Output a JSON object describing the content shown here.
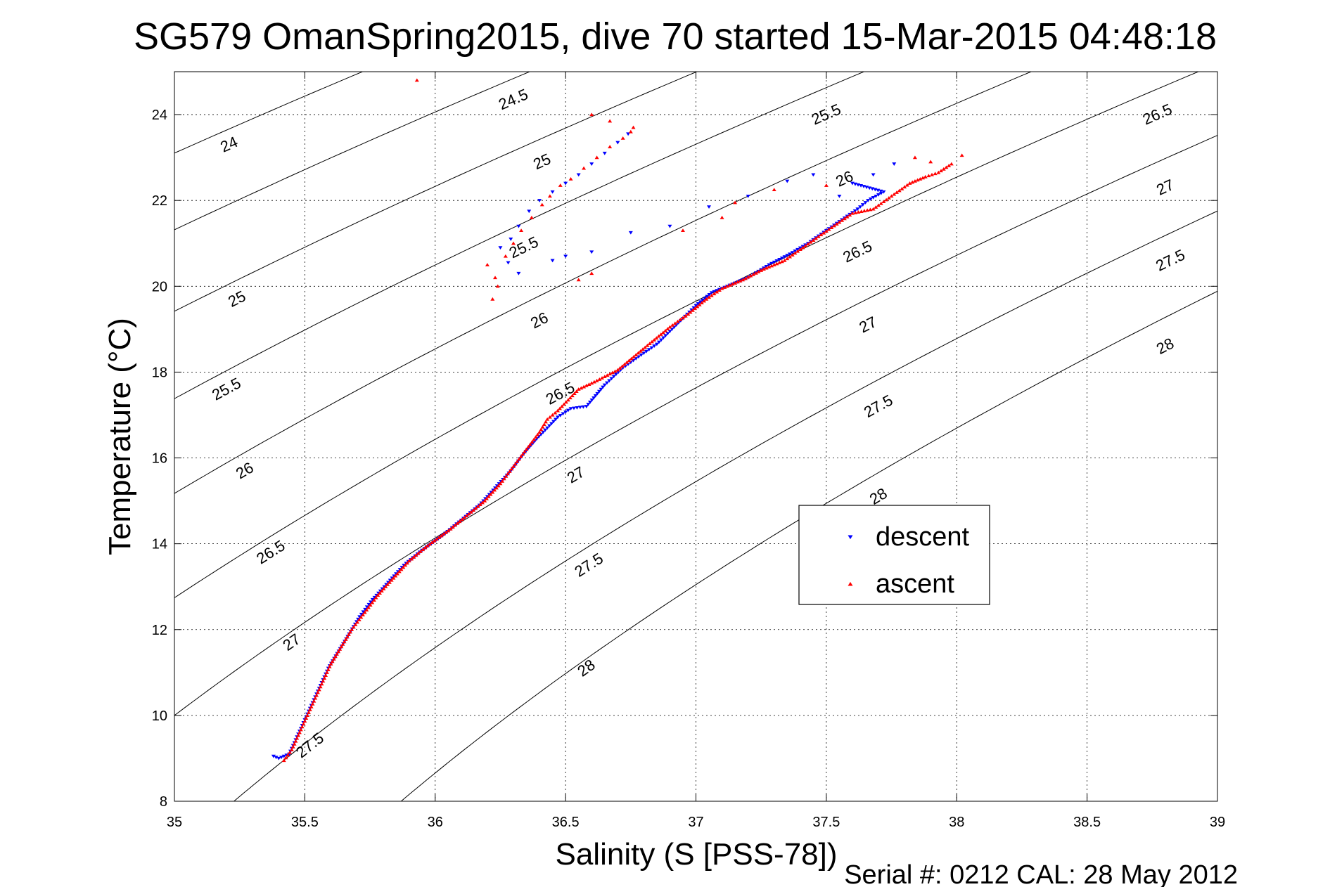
{
  "chart_data": {
    "type": "scatter",
    "title": "SG579 OmanSpring2015, dive 70 started 15-Mar-2015 04:48:18",
    "xlabel": "Salinity (S [PSS-78])",
    "ylabel": "Temperature (°C)",
    "xlim": [
      35,
      39
    ],
    "ylim": [
      8,
      25
    ],
    "xticks": [
      35,
      35.5,
      36,
      36.5,
      37,
      37.5,
      38,
      38.5,
      39
    ],
    "xtick_labels": [
      "35",
      "35.5",
      "36",
      "36.5",
      "37",
      "37.5",
      "38",
      "38.5",
      "39"
    ],
    "yticks": [
      8,
      10,
      12,
      14,
      16,
      18,
      20,
      22,
      24
    ],
    "ytick_labels": [
      "8",
      "10",
      "12",
      "14",
      "16",
      "18",
      "20",
      "22",
      "24"
    ],
    "grid": true,
    "legend_position": "right-center",
    "density_contours": {
      "levels": [
        24,
        24.5,
        25,
        25.5,
        26,
        26.5,
        27,
        27.5,
        28
      ],
      "labels": [
        {
          "text": "24",
          "s": 35.21,
          "t": 23.3
        },
        {
          "text": "24.5",
          "s": 36.3,
          "t": 24.35
        },
        {
          "text": "25",
          "s": 36.41,
          "t": 22.9
        },
        {
          "text": "25",
          "s": 35.24,
          "t": 19.7
        },
        {
          "text": "25.5",
          "s": 37.5,
          "t": 24.0
        },
        {
          "text": "25.5",
          "s": 36.34,
          "t": 20.9
        },
        {
          "text": "25.5",
          "s": 35.2,
          "t": 17.6
        },
        {
          "text": "26",
          "s": 37.57,
          "t": 22.5
        },
        {
          "text": "26",
          "s": 36.4,
          "t": 19.2
        },
        {
          "text": "26",
          "s": 35.27,
          "t": 15.7
        },
        {
          "text": "26.5",
          "s": 38.77,
          "t": 24.0
        },
        {
          "text": "26.5",
          "s": 37.62,
          "t": 20.8
        },
        {
          "text": "26.5",
          "s": 36.48,
          "t": 17.5
        },
        {
          "text": "26.5",
          "s": 35.37,
          "t": 13.8
        },
        {
          "text": "27",
          "s": 38.8,
          "t": 22.3
        },
        {
          "text": "27",
          "s": 37.66,
          "t": 19.1
        },
        {
          "text": "27",
          "s": 36.54,
          "t": 15.6
        },
        {
          "text": "27",
          "s": 35.45,
          "t": 11.7
        },
        {
          "text": "27.5",
          "s": 38.82,
          "t": 20.6
        },
        {
          "text": "27.5",
          "s": 37.7,
          "t": 17.2
        },
        {
          "text": "27.5",
          "s": 36.59,
          "t": 13.5
        },
        {
          "text": "27.5",
          "s": 35.52,
          "t": 9.3
        },
        {
          "text": "28",
          "s": 38.8,
          "t": 18.6
        },
        {
          "text": "28",
          "s": 37.7,
          "t": 15.1
        },
        {
          "text": "28",
          "s": 36.58,
          "t": 11.1
        }
      ]
    },
    "series": [
      {
        "name": "descent",
        "color": "#0000ff",
        "marker": "triangle-down",
        "points": [
          [
            35.38,
            9.05
          ],
          [
            35.4,
            9.0
          ],
          [
            35.44,
            9.1
          ],
          [
            35.47,
            9.5
          ],
          [
            35.5,
            9.9
          ],
          [
            35.53,
            10.3
          ],
          [
            35.56,
            10.7
          ],
          [
            35.59,
            11.1
          ],
          [
            35.63,
            11.5
          ],
          [
            35.67,
            11.9
          ],
          [
            35.71,
            12.3
          ],
          [
            35.76,
            12.7
          ],
          [
            35.82,
            13.1
          ],
          [
            35.88,
            13.5
          ],
          [
            35.95,
            13.85
          ],
          [
            36.03,
            14.2
          ],
          [
            36.1,
            14.55
          ],
          [
            36.17,
            14.9
          ],
          [
            36.23,
            15.3
          ],
          [
            36.29,
            15.7
          ],
          [
            36.34,
            16.1
          ],
          [
            36.39,
            16.45
          ],
          [
            36.43,
            16.7
          ],
          [
            36.47,
            16.95
          ],
          [
            36.52,
            17.15
          ],
          [
            36.58,
            17.2
          ],
          [
            36.65,
            17.7
          ],
          [
            36.72,
            18.1
          ],
          [
            36.79,
            18.4
          ],
          [
            36.85,
            18.65
          ],
          [
            36.9,
            18.95
          ],
          [
            36.95,
            19.25
          ],
          [
            37.0,
            19.55
          ],
          [
            37.06,
            19.85
          ],
          [
            37.12,
            20.0
          ],
          [
            37.2,
            20.2
          ],
          [
            37.28,
            20.5
          ],
          [
            37.36,
            20.75
          ],
          [
            37.43,
            21.0
          ],
          [
            37.5,
            21.3
          ],
          [
            37.56,
            21.55
          ],
          [
            37.62,
            21.8
          ],
          [
            37.66,
            22.0
          ],
          [
            37.72,
            22.2
          ],
          [
            37.6,
            22.4
          ],
          [
            37.55,
            22.1
          ],
          [
            37.68,
            22.6
          ],
          [
            37.76,
            22.85
          ],
          [
            37.45,
            22.6
          ],
          [
            37.35,
            22.45
          ],
          [
            37.2,
            22.1
          ],
          [
            37.05,
            21.85
          ],
          [
            36.9,
            21.4
          ],
          [
            36.75,
            21.25
          ],
          [
            36.6,
            20.8
          ],
          [
            36.5,
            20.7
          ],
          [
            36.45,
            20.6
          ],
          [
            36.32,
            20.3
          ],
          [
            36.28,
            20.55
          ],
          [
            36.25,
            20.9
          ],
          [
            36.29,
            21.1
          ],
          [
            36.32,
            21.4
          ],
          [
            36.36,
            21.75
          ],
          [
            36.4,
            22.0
          ],
          [
            36.45,
            22.2
          ],
          [
            36.5,
            22.4
          ],
          [
            36.55,
            22.6
          ],
          [
            36.6,
            22.85
          ],
          [
            36.65,
            23.1
          ],
          [
            36.7,
            23.35
          ],
          [
            36.74,
            23.55
          ]
        ]
      },
      {
        "name": "ascent",
        "color": "#ff0000",
        "marker": "triangle-up",
        "points": [
          [
            35.42,
            8.95
          ],
          [
            35.45,
            9.2
          ],
          [
            35.48,
            9.6
          ],
          [
            35.51,
            10.0
          ],
          [
            35.54,
            10.4
          ],
          [
            35.57,
            10.8
          ],
          [
            35.6,
            11.2
          ],
          [
            35.64,
            11.6
          ],
          [
            35.68,
            12.0
          ],
          [
            35.73,
            12.4
          ],
          [
            35.78,
            12.8
          ],
          [
            35.84,
            13.2
          ],
          [
            35.9,
            13.6
          ],
          [
            35.97,
            13.95
          ],
          [
            36.05,
            14.3
          ],
          [
            36.12,
            14.65
          ],
          [
            36.19,
            15.0
          ],
          [
            36.25,
            15.4
          ],
          [
            36.3,
            15.8
          ],
          [
            36.35,
            16.2
          ],
          [
            36.4,
            16.6
          ],
          [
            36.43,
            16.9
          ],
          [
            36.47,
            17.1
          ],
          [
            36.55,
            17.6
          ],
          [
            36.62,
            17.8
          ],
          [
            36.7,
            18.05
          ],
          [
            36.77,
            18.4
          ],
          [
            36.84,
            18.75
          ],
          [
            36.9,
            19.05
          ],
          [
            36.97,
            19.35
          ],
          [
            37.04,
            19.7
          ],
          [
            37.1,
            19.95
          ],
          [
            37.18,
            20.15
          ],
          [
            37.26,
            20.4
          ],
          [
            37.34,
            20.6
          ],
          [
            37.41,
            20.9
          ],
          [
            37.48,
            21.2
          ],
          [
            37.54,
            21.45
          ],
          [
            37.6,
            21.7
          ],
          [
            37.68,
            21.8
          ],
          [
            37.75,
            22.1
          ],
          [
            37.82,
            22.4
          ],
          [
            37.88,
            22.55
          ],
          [
            37.93,
            22.65
          ],
          [
            37.98,
            22.85
          ],
          [
            38.02,
            23.05
          ],
          [
            37.9,
            22.9
          ],
          [
            37.84,
            23.0
          ],
          [
            37.5,
            22.35
          ],
          [
            37.3,
            22.25
          ],
          [
            37.15,
            21.95
          ],
          [
            37.1,
            21.6
          ],
          [
            36.95,
            21.3
          ],
          [
            36.6,
            20.3
          ],
          [
            36.55,
            20.15
          ],
          [
            36.24,
            20.0
          ],
          [
            36.22,
            19.7
          ],
          [
            36.2,
            20.5
          ],
          [
            36.23,
            20.2
          ],
          [
            36.27,
            20.7
          ],
          [
            36.3,
            21.0
          ],
          [
            36.33,
            21.3
          ],
          [
            36.37,
            21.6
          ],
          [
            36.41,
            21.9
          ],
          [
            36.44,
            22.1
          ],
          [
            36.48,
            22.35
          ],
          [
            36.52,
            22.5
          ],
          [
            36.57,
            22.75
          ],
          [
            36.62,
            23.0
          ],
          [
            36.67,
            23.25
          ],
          [
            36.72,
            23.45
          ],
          [
            36.75,
            23.6
          ],
          [
            36.76,
            23.7
          ],
          [
            36.6,
            24.0
          ],
          [
            36.67,
            23.85
          ],
          [
            35.93,
            24.8
          ]
        ]
      }
    ],
    "footer": "Serial #: 0212  CAL: 28 May 2012"
  }
}
